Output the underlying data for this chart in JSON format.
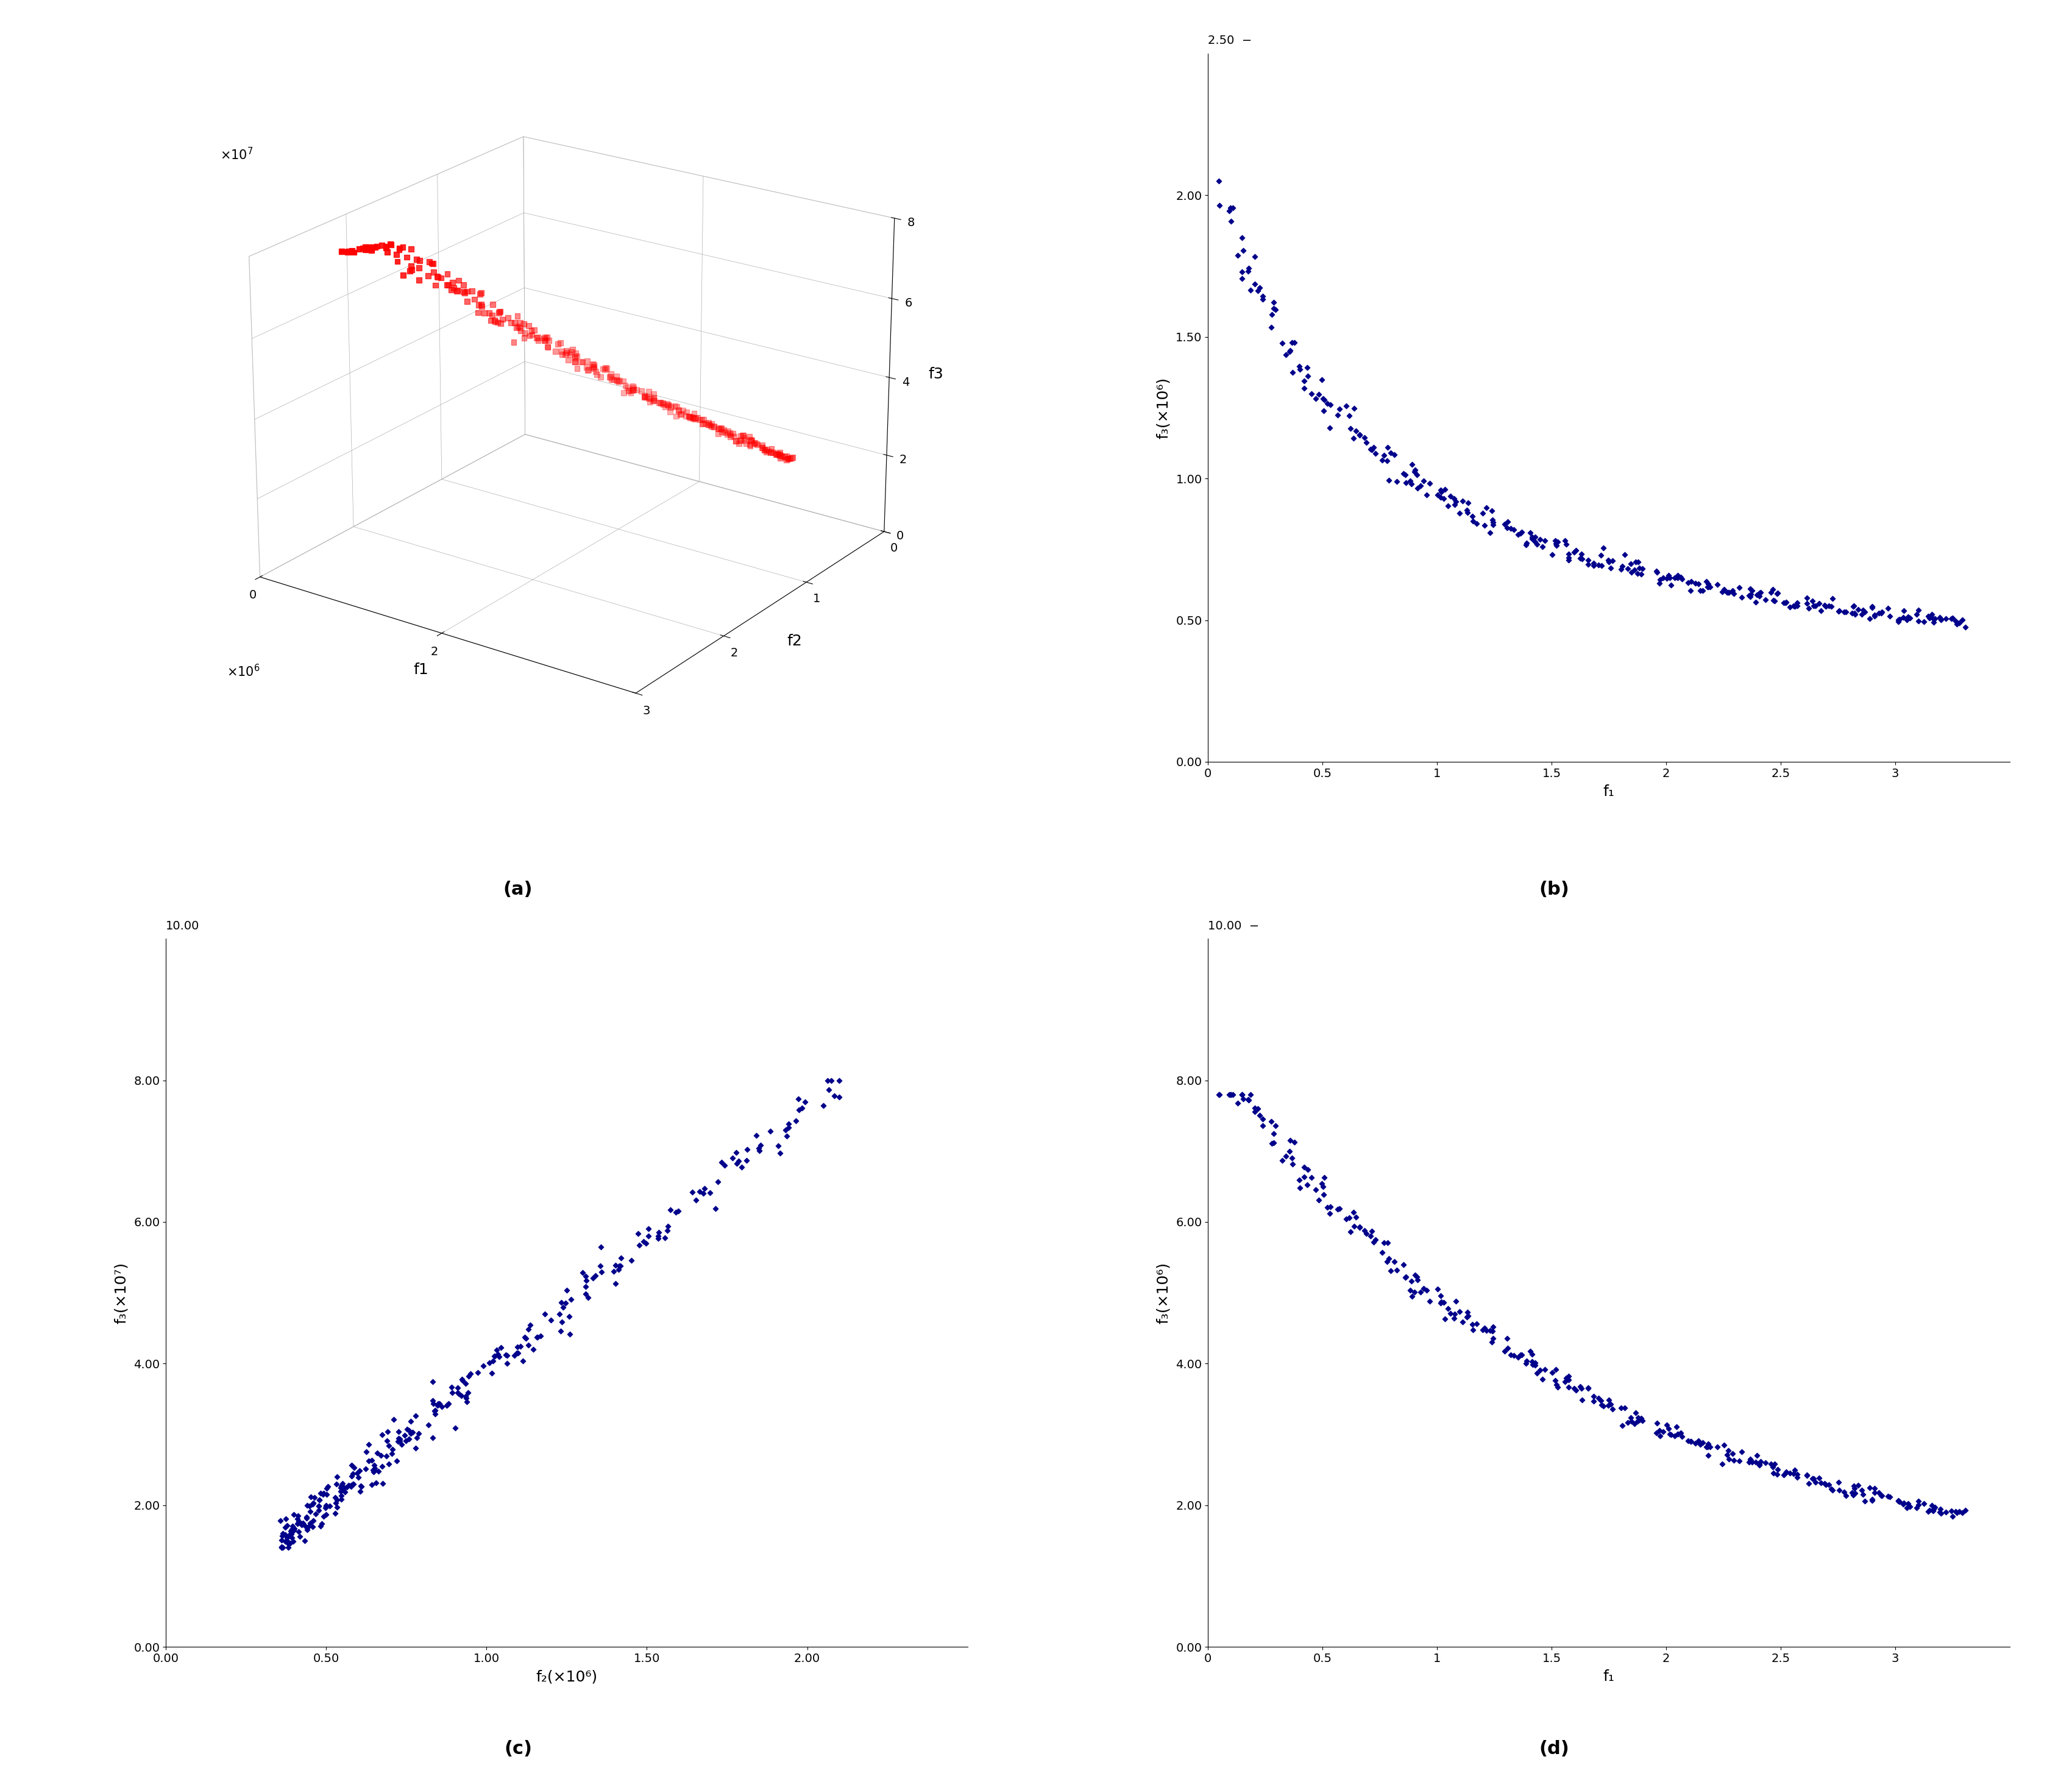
{
  "panel_a": {
    "title": "(a)",
    "xlabel": "f1",
    "ylabel": "f2",
    "zlabel": "f3",
    "color": "#FF0000",
    "marker": "s",
    "elev": 22,
    "azim": -55
  },
  "panel_b": {
    "title": "(b)",
    "xlabel": "f₁",
    "ylabel": "f₃(×10⁶)",
    "xlim": [
      0,
      3.5
    ],
    "ylim": [
      0,
      2.5
    ],
    "yticks": [
      0.0,
      0.5,
      1.0,
      1.5,
      2.0
    ],
    "xticks": [
      0,
      0.5,
      1,
      1.5,
      2,
      2.5,
      3
    ],
    "color": "#00008B",
    "marker": "D",
    "marker_size": 18
  },
  "panel_c": {
    "title": "(c)",
    "xlabel": "f₂(×10⁶)",
    "ylabel": "f₃(×10⁷)",
    "xlim": [
      0,
      2.5
    ],
    "ylim": [
      0,
      10
    ],
    "yticks": [
      0.0,
      2.0,
      4.0,
      6.0,
      8.0
    ],
    "xticks": [
      0.0,
      0.5,
      1.0,
      1.5,
      2.0
    ],
    "color": "#00008B",
    "marker": "D",
    "marker_size": 18
  },
  "panel_d": {
    "title": "(d)",
    "xlabel": "f₁",
    "ylabel": "f₃(×10⁶)",
    "xlim": [
      0,
      3.5
    ],
    "ylim": [
      0,
      10
    ],
    "yticks": [
      0.0,
      2.0,
      4.0,
      6.0,
      8.0
    ],
    "xticks": [
      0,
      0.5,
      1,
      1.5,
      2,
      2.5,
      3
    ],
    "color": "#00008B",
    "marker": "D",
    "marker_size": 18
  }
}
